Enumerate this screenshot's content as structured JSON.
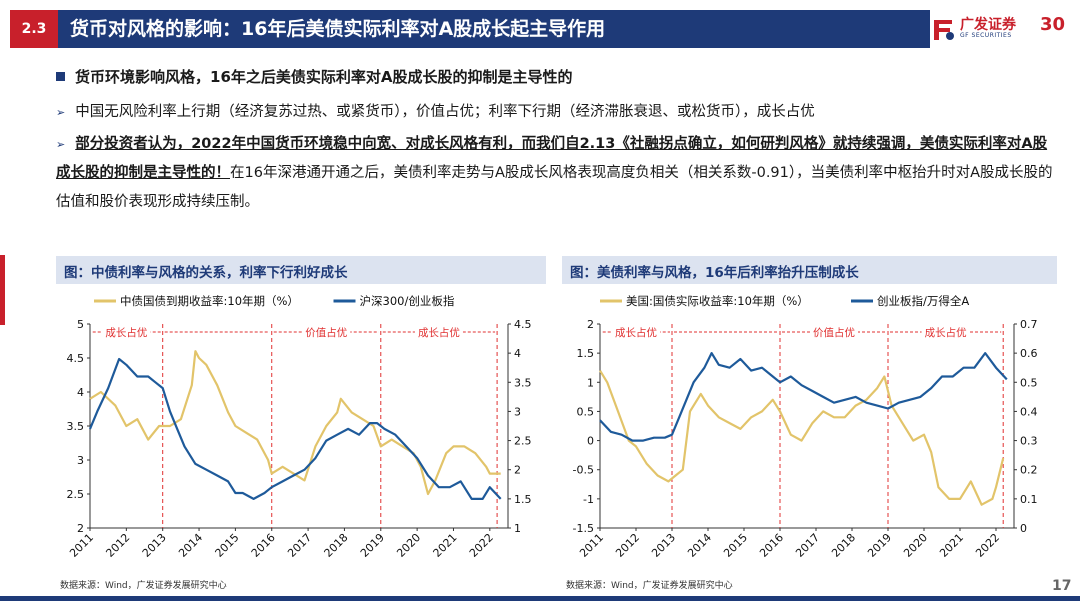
{
  "header": {
    "section_num": "2.3",
    "title": "货币对风格的影响：16年后美债实际利率对A股成长起主导作用",
    "logo_cn": "广发证券",
    "logo_en": "GF SECURITIES",
    "logo_num": "30"
  },
  "bullets": {
    "b1": "货币环境影响风格，16年之后美债实际利率对A股成长股的抑制是主导性的",
    "b2": "中国无风险利率上行期（经济复苏过热、或紧货币），价值占优；利率下行期（经济滞胀衰退、或松货币），成长占优",
    "b3_bold": "部分投资者认为，2022年中国货币环境稳中向宽、对成长风格有利，而我们自2.13《社融拐点确立，如何研判风格》就持续强调，美债实际利率对A股成长股的抑制是主导性的！",
    "b3_rest": "在16年深港通开通之后，美债利率走势与A股成长风格表现高度负相关（相关系数-0.91），当美债利率中枢抬升时对A股成长股的估值和股价表现形成持续压制。"
  },
  "panels": {
    "left_title": "图：中债利率与风格的关系，利率下行利好成长",
    "right_title": "图：美债利率与风格，16年后利率抬升压制成长",
    "source_left": "数据来源：Wind，广发证券发展研究中心",
    "source_right": "数据来源：Wind，广发证券发展研究中心",
    "page_number": "17"
  },
  "chart_data": [
    {
      "type": "line",
      "x_ticks": [
        "2011",
        "2012",
        "2013",
        "2014",
        "2015",
        "2016",
        "2017",
        "2018",
        "2019",
        "2020",
        "2021",
        "2022"
      ],
      "xlim": [
        2011.0,
        2022.5
      ],
      "ylim_left": [
        2,
        5
      ],
      "yticks_left": [
        "2",
        "2.5",
        "3",
        "3.5",
        "4",
        "4.5",
        "5"
      ],
      "ylim_right": [
        1,
        4.5
      ],
      "yticks_right": [
        "1",
        "1.5",
        "2",
        "2.5",
        "3",
        "3.5",
        "4",
        "4.5"
      ],
      "series": [
        {
          "name": "中债国债到期收益率:10年期（%）",
          "axis": "left",
          "color": "#e2c46a",
          "x": [
            2011.0,
            2011.3,
            2011.7,
            2012.0,
            2012.3,
            2012.6,
            2012.9,
            2013.2,
            2013.5,
            2013.8,
            2013.9,
            2014.0,
            2014.2,
            2014.5,
            2014.8,
            2015.0,
            2015.3,
            2015.6,
            2015.9,
            2016.0,
            2016.3,
            2016.6,
            2016.9,
            2017.2,
            2017.5,
            2017.8,
            2017.9,
            2018.2,
            2018.5,
            2018.8,
            2019.0,
            2019.3,
            2019.6,
            2019.9,
            2020.1,
            2020.3,
            2020.5,
            2020.8,
            2021.0,
            2021.3,
            2021.6,
            2021.9,
            2022.0,
            2022.3
          ],
          "y": [
            3.9,
            4.0,
            3.8,
            3.5,
            3.6,
            3.3,
            3.5,
            3.5,
            3.6,
            4.1,
            4.6,
            4.5,
            4.4,
            4.1,
            3.7,
            3.5,
            3.4,
            3.3,
            3.0,
            2.8,
            2.9,
            2.8,
            2.7,
            3.2,
            3.5,
            3.7,
            3.9,
            3.7,
            3.6,
            3.5,
            3.2,
            3.3,
            3.2,
            3.1,
            2.9,
            2.5,
            2.7,
            3.1,
            3.2,
            3.2,
            3.1,
            2.9,
            2.8,
            2.8
          ]
        },
        {
          "name": "沪深300/创业板指",
          "axis": "right",
          "color": "#1e5a9a",
          "x": [
            2011.0,
            2011.2,
            2011.5,
            2011.8,
            2012.0,
            2012.3,
            2012.6,
            2012.8,
            2013.0,
            2013.2,
            2013.4,
            2013.6,
            2013.9,
            2014.2,
            2014.5,
            2014.8,
            2015.0,
            2015.2,
            2015.5,
            2015.8,
            2016.0,
            2016.3,
            2016.6,
            2016.9,
            2017.2,
            2017.5,
            2017.8,
            2018.1,
            2018.4,
            2018.7,
            2018.9,
            2019.1,
            2019.4,
            2019.7,
            2020.0,
            2020.3,
            2020.6,
            2020.9,
            2021.2,
            2021.5,
            2021.8,
            2022.0,
            2022.3
          ],
          "y": [
            2.7,
            3.0,
            3.4,
            3.9,
            3.8,
            3.6,
            3.6,
            3.5,
            3.4,
            3.0,
            2.7,
            2.4,
            2.1,
            2.0,
            1.9,
            1.8,
            1.6,
            1.6,
            1.5,
            1.6,
            1.7,
            1.8,
            1.9,
            2.0,
            2.2,
            2.5,
            2.6,
            2.7,
            2.6,
            2.8,
            2.8,
            2.7,
            2.6,
            2.4,
            2.2,
            1.9,
            1.7,
            1.7,
            1.8,
            1.5,
            1.5,
            1.7,
            1.5
          ]
        }
      ],
      "legend": [
        "中债国债到期收益率:10年期（%）",
        "沪深300/创业板指"
      ],
      "legend_position": "top",
      "vlines": [
        2013.0,
        2016.0,
        2019.0,
        2022.2
      ],
      "annotations": [
        {
          "text": "成长占优",
          "x": 2012.0
        },
        {
          "text": "价值占优",
          "x": 2017.5
        },
        {
          "text": "成长占优",
          "x": 2020.6
        }
      ]
    },
    {
      "type": "line",
      "x_ticks": [
        "2011",
        "2012",
        "2013",
        "2014",
        "2015",
        "2016",
        "2017",
        "2018",
        "2019",
        "2020",
        "2021",
        "2022"
      ],
      "xlim": [
        2011.0,
        2022.5
      ],
      "ylim_left": [
        -1.5,
        2
      ],
      "yticks_left": [
        "-1.5",
        "-1",
        "-0.5",
        "0",
        "0.5",
        "1",
        "1.5",
        "2"
      ],
      "ylim_right": [
        0,
        0.7
      ],
      "yticks_right": [
        "0",
        "0.1",
        "0.2",
        "0.3",
        "0.4",
        "0.5",
        "0.6",
        "0.7"
      ],
      "series": [
        {
          "name": "美国:国债实际收益率:10年期（%）",
          "axis": "left",
          "color": "#e2c46a",
          "x": [
            2011.0,
            2011.2,
            2011.5,
            2011.8,
            2012.0,
            2012.3,
            2012.6,
            2012.9,
            2013.1,
            2013.3,
            2013.5,
            2013.8,
            2014.0,
            2014.3,
            2014.6,
            2014.9,
            2015.2,
            2015.5,
            2015.8,
            2016.0,
            2016.3,
            2016.6,
            2016.9,
            2017.2,
            2017.5,
            2017.8,
            2018.1,
            2018.4,
            2018.7,
            2018.9,
            2019.1,
            2019.4,
            2019.7,
            2020.0,
            2020.2,
            2020.4,
            2020.7,
            2021.0,
            2021.3,
            2021.6,
            2021.9,
            2022.0,
            2022.2
          ],
          "y": [
            1.2,
            1.0,
            0.5,
            0.0,
            -0.1,
            -0.4,
            -0.6,
            -0.7,
            -0.6,
            -0.5,
            0.5,
            0.8,
            0.6,
            0.4,
            0.3,
            0.2,
            0.4,
            0.5,
            0.7,
            0.5,
            0.1,
            0.0,
            0.3,
            0.5,
            0.4,
            0.4,
            0.6,
            0.7,
            0.9,
            1.1,
            0.6,
            0.3,
            0.0,
            0.1,
            -0.2,
            -0.8,
            -1.0,
            -1.0,
            -0.7,
            -1.1,
            -1.0,
            -0.8,
            -0.3
          ]
        },
        {
          "name": "创业板指/万得全A",
          "axis": "right",
          "color": "#1e5a9a",
          "x": [
            2011.0,
            2011.3,
            2011.6,
            2011.9,
            2012.2,
            2012.5,
            2012.8,
            2013.0,
            2013.2,
            2013.4,
            2013.6,
            2013.9,
            2014.1,
            2014.3,
            2014.6,
            2014.9,
            2015.2,
            2015.5,
            2015.8,
            2016.0,
            2016.3,
            2016.6,
            2016.9,
            2017.2,
            2017.5,
            2017.8,
            2018.1,
            2018.4,
            2018.7,
            2019.0,
            2019.3,
            2019.6,
            2019.9,
            2020.2,
            2020.5,
            2020.8,
            2021.1,
            2021.4,
            2021.7,
            2022.0,
            2022.3
          ],
          "y": [
            0.37,
            0.33,
            0.32,
            0.3,
            0.3,
            0.31,
            0.31,
            0.32,
            0.38,
            0.44,
            0.5,
            0.55,
            0.6,
            0.56,
            0.55,
            0.58,
            0.54,
            0.55,
            0.52,
            0.5,
            0.52,
            0.49,
            0.47,
            0.45,
            0.43,
            0.44,
            0.45,
            0.43,
            0.42,
            0.41,
            0.43,
            0.44,
            0.45,
            0.48,
            0.52,
            0.52,
            0.55,
            0.55,
            0.6,
            0.55,
            0.51
          ]
        }
      ],
      "legend": [
        "美国:国债实际收益率:10年期（%）",
        "创业板指/万得全A"
      ],
      "legend_position": "top",
      "vlines": [
        2013.0,
        2016.0,
        2019.0,
        2022.2
      ],
      "annotations": [
        {
          "text": "成长占优",
          "x": 2012.0
        },
        {
          "text": "价值占优",
          "x": 2017.5
        },
        {
          "text": "成长占优",
          "x": 2020.6
        }
      ]
    }
  ]
}
